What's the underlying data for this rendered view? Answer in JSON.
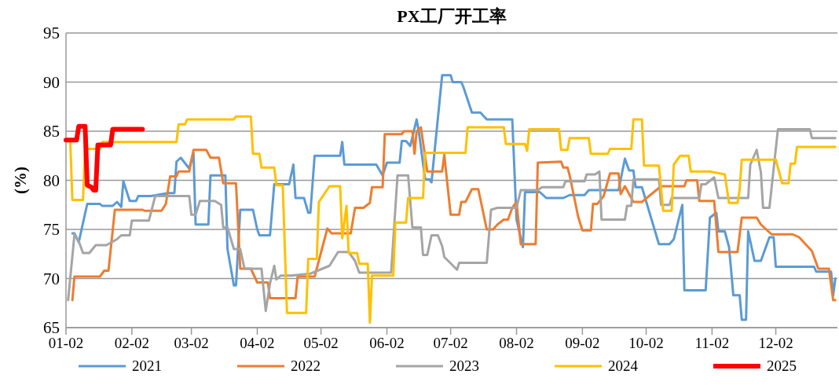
{
  "chart_data": {
    "type": "line",
    "title": "PX工厂开工率",
    "ylabel": "(%)",
    "grid": "y",
    "legend": "bottom",
    "xlim": [
      "--01-02",
      "--12-31"
    ],
    "xticks": [
      {
        "value": "--01-02",
        "label": "01-02"
      },
      {
        "value": "--02-02",
        "label": "02-02"
      },
      {
        "value": "--03-02",
        "label": "03-02"
      },
      {
        "value": "--04-02",
        "label": "04-02"
      },
      {
        "value": "--05-02",
        "label": "05-02"
      },
      {
        "value": "--06-02",
        "label": "06-02"
      },
      {
        "value": "--07-02",
        "label": "07-02"
      },
      {
        "value": "--08-02",
        "label": "08-02"
      },
      {
        "value": "--09-02",
        "label": "09-02"
      },
      {
        "value": "--10-02",
        "label": "10-02"
      },
      {
        "value": "--11-02",
        "label": "11-02"
      },
      {
        "value": "--12-02",
        "label": "12-02"
      }
    ],
    "ylim": [
      65,
      95
    ],
    "yticks": [
      65,
      70,
      75,
      80,
      85,
      90,
      95
    ],
    "series": [
      {
        "name": "2021",
        "color": "#5b9bd5",
        "x": [
          "--01-05",
          "--01-06",
          "--01-08",
          "--01-12",
          "--01-18",
          "--01-19",
          "--01-24",
          "--01-26",
          "--01-28",
          "--01-29",
          "--02-01",
          "--02-04",
          "--02-05",
          "--02-11",
          "--02-19",
          "--02-22",
          "--02-23",
          "--02-25",
          "--03-01",
          "--03-03",
          "--03-04",
          "--03-10",
          "--03-11",
          "--03-18",
          "--03-19",
          "--03-22",
          "--03-23",
          "--03-25",
          "--03-31",
          "--04-02",
          "--04-03",
          "--04-08",
          "--04-10",
          "--04-17",
          "--04-19",
          "--04-20",
          "--04-24",
          "--04-26",
          "--04-27",
          "--04-29",
          "--05-11",
          "--05-12",
          "--05-13",
          "--05-28",
          "--05-31",
          "--06-02",
          "--06-08",
          "--06-09",
          "--06-11",
          "--06-13",
          "--06-16",
          "--06-17",
          "--06-20",
          "--06-22",
          "--06-23",
          "--06-28",
          "--07-02",
          "--07-03",
          "--07-07",
          "--07-08",
          "--07-12",
          "--07-16",
          "--07-19",
          "--07-31",
          "--08-02",
          "--08-05",
          "--08-06",
          "--08-13",
          "--08-16",
          "--08-24",
          "--08-27",
          "--09-03",
          "--09-05",
          "--09-19",
          "--09-22",
          "--09-24",
          "--09-26",
          "--09-27",
          "--09-30",
          "--10-08",
          "--10-13",
          "--10-15",
          "--10-19",
          "--10-20",
          "--10-30",
          "--11-01",
          "--11-04",
          "--11-05",
          "--11-08",
          "--11-10",
          "--11-11",
          "--11-12",
          "--11-15",
          "--11-16",
          "--11-18",
          "--11-19",
          "--11-22",
          "--11-25",
          "--11-29",
          "--12-01",
          "--12-02",
          "--12-20",
          "--12-21",
          "--12-28",
          "--12-29",
          "--12-30"
        ],
        "values": [
          74.6,
          74.6,
          73.7,
          77.6,
          77.6,
          77.4,
          77.4,
          77.8,
          77.3,
          79.9,
          77.9,
          77.9,
          78.4,
          78.4,
          78.7,
          78.7,
          81.9,
          82.3,
          81.2,
          82.8,
          75.5,
          75.5,
          80.5,
          80.5,
          73.0,
          69.3,
          69.3,
          77.0,
          77.0,
          75.0,
          74.4,
          74.4,
          79.6,
          79.6,
          81.6,
          78.2,
          78.2,
          76.7,
          76.7,
          82.5,
          82.5,
          83.9,
          81.6,
          81.6,
          80.5,
          81.8,
          81.8,
          84.0,
          84.0,
          83.5,
          86.2,
          85.0,
          80.1,
          80.1,
          79.8,
          90.7,
          90.7,
          90.0,
          90.0,
          89.5,
          86.9,
          86.9,
          86.2,
          86.2,
          76.0,
          73.2,
          78.8,
          78.8,
          78.2,
          78.2,
          78.5,
          78.5,
          79.0,
          79.0,
          82.2,
          81.0,
          81.0,
          79.3,
          79.3,
          73.5,
          73.5,
          74.0,
          77.5,
          68.8,
          68.8,
          76.2,
          76.7,
          74.8,
          74.8,
          73.2,
          70.8,
          68.3,
          68.3,
          65.8,
          65.8,
          74.8,
          71.8,
          71.8,
          74.2,
          74.2,
          71.2,
          71.2,
          70.7,
          70.7,
          68.3,
          70.0
        ]
      },
      {
        "name": "2022",
        "color": "#ed7d31",
        "x": [
          "--01-05",
          "--01-06",
          "--01-18",
          "--01-20",
          "--01-22",
          "--01-25",
          "--02-07",
          "--02-08",
          "--02-16",
          "--02-18",
          "--02-20",
          "--02-23",
          "--02-24",
          "--03-01",
          "--03-03",
          "--03-09",
          "--03-11",
          "--03-15",
          "--03-17",
          "--03-23",
          "--03-25",
          "--03-30",
          "--04-02",
          "--04-07",
          "--04-08",
          "--04-20",
          "--04-21",
          "--04-29",
          "--05-05",
          "--05-07",
          "--05-16",
          "--05-18",
          "--05-22",
          "--05-25",
          "--05-26",
          "--05-31",
          "--06-01",
          "--06-09",
          "--06-10",
          "--06-14",
          "--06-15",
          "--06-16",
          "--06-18",
          "--06-21",
          "--06-28",
          "--06-29",
          "--07-02",
          "--07-06",
          "--07-07",
          "--07-09",
          "--07-12",
          "--07-15",
          "--07-19",
          "--07-22",
          "--07-24",
          "--07-27",
          "--07-29",
          "--07-31",
          "--08-02",
          "--08-04",
          "--08-11",
          "--08-12",
          "--08-23",
          "--08-24",
          "--08-26",
          "--08-27",
          "--08-31",
          "--09-02",
          "--09-06",
          "--09-07",
          "--09-09",
          "--09-12",
          "--09-15",
          "--09-19",
          "--09-20",
          "--09-22",
          "--09-26",
          "--09-30",
          "--10-09",
          "--10-20",
          "--10-21",
          "--10-26",
          "--10-27",
          "--11-03",
          "--11-05",
          "--11-14",
          "--11-16",
          "--11-23",
          "--11-25",
          "--11-30",
          "--12-10",
          "--12-13",
          "--12-19",
          "--12-22",
          "--12-27",
          "--12-29",
          "--12-30"
        ],
        "values": [
          67.8,
          70.2,
          70.2,
          70.8,
          70.8,
          77.0,
          77.0,
          76.9,
          76.9,
          77.6,
          80.4,
          80.4,
          80.9,
          80.9,
          83.1,
          83.1,
          82.3,
          82.3,
          79.7,
          79.7,
          71.0,
          71.0,
          69.6,
          69.6,
          68.0,
          68.0,
          70.2,
          70.2,
          75.1,
          74.6,
          74.6,
          77.2,
          77.2,
          77.7,
          79.3,
          79.3,
          84.7,
          84.7,
          85.0,
          85.0,
          82.7,
          85.0,
          85.4,
          80.9,
          80.9,
          82.6,
          76.5,
          76.5,
          77.8,
          77.8,
          79.1,
          79.1,
          75.0,
          75.0,
          75.5,
          76.0,
          76.0,
          77.2,
          77.8,
          73.5,
          73.5,
          81.8,
          81.9,
          81.3,
          81.3,
          80.5,
          76.3,
          74.9,
          74.9,
          77.6,
          77.6,
          78.4,
          80.7,
          80.7,
          78.6,
          79.4,
          77.8,
          77.8,
          79.4,
          79.4,
          80.0,
          80.0,
          77.9,
          77.9,
          72.7,
          72.7,
          76.2,
          76.2,
          75.5,
          74.5,
          74.5,
          74.2,
          72.8,
          71.0,
          71.0,
          67.8,
          67.8
        ]
      },
      {
        "name": "2023",
        "color": "#a5a5a5",
        "x": [
          "--01-03",
          "--01-06",
          "--01-08",
          "--01-10",
          "--01-13",
          "--01-16",
          "--01-21",
          "--01-26",
          "--01-28",
          "--02-01",
          "--02-02",
          "--02-10",
          "--02-13",
          "--03-01",
          "--03-02",
          "--03-04",
          "--03-06",
          "--03-13",
          "--03-16",
          "--03-17",
          "--03-19",
          "--03-22",
          "--03-25",
          "--03-27",
          "--04-04",
          "--04-06",
          "--04-08",
          "--04-10",
          "--04-11",
          "--04-13",
          "--04-18",
          "--04-27",
          "--05-06",
          "--05-10",
          "--05-15",
          "--05-18",
          "--05-20",
          "--06-04",
          "--06-07",
          "--06-12",
          "--06-14",
          "--06-18",
          "--06-19",
          "--06-21",
          "--06-23",
          "--06-26",
          "--06-28",
          "--06-29",
          "--07-05",
          "--07-06",
          "--07-19",
          "--07-21",
          "--07-24",
          "--08-02",
          "--08-04",
          "--08-12",
          "--08-14",
          "--08-24",
          "--08-25",
          "--09-03",
          "--09-04",
          "--09-08",
          "--09-10",
          "--09-11",
          "--09-22",
          "--09-23",
          "--09-25",
          "--09-26",
          "--10-08",
          "--10-09",
          "--10-13",
          "--10-14",
          "--10-27",
          "--10-28",
          "--10-30",
          "--11-03",
          "--11-05",
          "--11-19",
          "--11-20",
          "--11-23",
          "--11-25",
          "--11-26",
          "--11-29",
          "--12-03",
          "--12-18",
          "--12-19",
          "--12-30"
        ],
        "values": [
          67.8,
          74.5,
          73.8,
          72.6,
          72.6,
          73.4,
          73.4,
          74.0,
          74.4,
          74.4,
          75.9,
          75.9,
          78.4,
          78.4,
          76.5,
          76.5,
          77.9,
          77.9,
          77.5,
          75.2,
          75.2,
          73.0,
          73.0,
          71.0,
          71.0,
          66.7,
          69.5,
          71.3,
          69.9,
          70.3,
          70.3,
          70.5,
          71.3,
          72.7,
          72.7,
          71.8,
          70.6,
          70.6,
          80.5,
          80.5,
          75.2,
          75.2,
          72.4,
          72.4,
          74.4,
          74.4,
          73.3,
          72.2,
          70.9,
          71.6,
          71.6,
          77.0,
          77.2,
          77.2,
          79.0,
          79.0,
          79.3,
          79.3,
          79.9,
          79.9,
          80.6,
          80.6,
          80.9,
          76.0,
          76.0,
          77.4,
          77.4,
          80.1,
          80.1,
          77.5,
          77.5,
          78.2,
          78.2,
          79.6,
          79.6,
          80.3,
          78.2,
          78.2,
          81.6,
          83.1,
          80.8,
          77.2,
          77.2,
          85.2,
          85.2,
          84.3,
          84.3
        ]
      },
      {
        "name": "2024",
        "color": "#ffc000",
        "x": [
          "--01-02",
          "--01-04",
          "--01-05",
          "--01-10",
          "--01-11",
          "--01-18",
          "--01-19",
          "--02-23",
          "--02-24",
          "--02-27",
          "--02-28",
          "--03-22",
          "--03-23",
          "--03-30",
          "--03-31",
          "--04-03",
          "--04-04",
          "--04-10",
          "--04-11",
          "--04-14",
          "--04-16",
          "--04-25",
          "--04-26",
          "--04-30",
          "--05-01",
          "--05-06",
          "--05-11",
          "--05-12",
          "--05-14",
          "--05-15",
          "--05-19",
          "--05-20",
          "--05-24",
          "--05-25",
          "--05-26",
          "--06-05",
          "--06-06",
          "--06-11",
          "--06-12",
          "--06-19",
          "--06-20",
          "--07-09",
          "--07-10",
          "--07-27",
          "--07-28",
          "--08-06",
          "--08-07",
          "--08-08",
          "--08-22",
          "--08-23",
          "--08-26",
          "--08-27",
          "--09-05",
          "--09-06",
          "--09-14",
          "--09-15",
          "--09-25",
          "--09-26",
          "--09-30",
          "--10-01",
          "--10-08",
          "--10-10",
          "--10-14",
          "--10-15",
          "--10-18",
          "--10-22",
          "--10-23",
          "--11-01",
          "--11-08",
          "--11-10",
          "--11-14",
          "--11-15",
          "--11-16",
          "--12-02",
          "--12-05",
          "--12-08",
          "--12-09",
          "--12-11",
          "--12-12",
          "--12-30"
        ],
        "values": [
          84.0,
          84.0,
          78.0,
          78.0,
          83.2,
          83.2,
          83.9,
          83.9,
          85.7,
          85.7,
          86.2,
          86.2,
          86.5,
          86.5,
          82.7,
          82.7,
          81.3,
          81.3,
          79.5,
          79.5,
          66.5,
          66.5,
          72.0,
          72.0,
          77.8,
          79.4,
          79.4,
          74.1,
          77.4,
          72.6,
          72.6,
          71.5,
          71.5,
          65.5,
          70.3,
          70.3,
          75.7,
          75.7,
          78.2,
          78.2,
          82.8,
          82.8,
          85.4,
          85.4,
          83.7,
          83.7,
          83.0,
          85.2,
          85.2,
          83.1,
          83.1,
          84.3,
          84.3,
          82.7,
          82.7,
          83.2,
          83.2,
          86.2,
          86.2,
          81.5,
          81.5,
          76.9,
          76.9,
          81.6,
          82.5,
          82.5,
          80.9,
          80.9,
          80.6,
          77.7,
          77.7,
          79.1,
          82.1,
          82.1,
          79.7,
          79.7,
          81.7,
          81.7,
          83.4,
          83.4
        ]
      },
      {
        "name": "2025",
        "color": "#ff0000",
        "x": [
          "--01-02",
          "--01-07",
          "--01-08",
          "--01-11",
          "--01-12",
          "--01-14",
          "--01-15",
          "--01-16",
          "--01-17",
          "--01-23",
          "--01-24",
          "--02-07"
        ],
        "values": [
          84.1,
          84.1,
          85.5,
          85.5,
          79.5,
          79.3,
          79.0,
          79.0,
          83.6,
          83.6,
          85.2,
          85.2
        ]
      }
    ]
  }
}
